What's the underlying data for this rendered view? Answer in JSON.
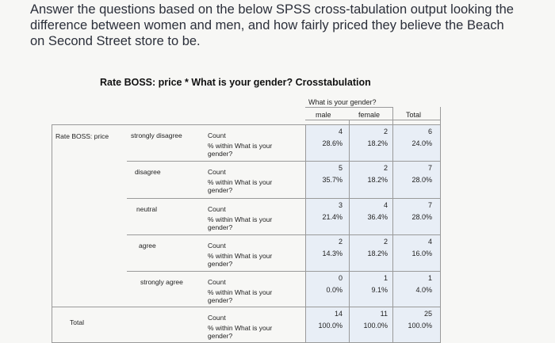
{
  "question": {
    "text": "Answer the questions based on the below SPSS cross-tabulation output looking the difference between women and men, and how fairly priced they believe the Beach on Second Street store to be."
  },
  "table": {
    "title": "Rate BOSS: price * What is your gender? Crosstabulation",
    "col_group_header": "What is your gender?",
    "columns": [
      "male",
      "female",
      "Total"
    ],
    "row_var_label": "Rate BOSS: price",
    "total_label": "Total",
    "stat_labels": [
      "Count",
      "% within What is your gender?"
    ],
    "rows": [
      {
        "category": "strongly disagree",
        "count": [
          "4",
          "2",
          "6"
        ],
        "pct": [
          "28.6%",
          "18.2%",
          "24.0%"
        ]
      },
      {
        "category": "disagree",
        "count": [
          "5",
          "2",
          "7"
        ],
        "pct": [
          "35.7%",
          "18.2%",
          "28.0%"
        ]
      },
      {
        "category": "neutral",
        "count": [
          "3",
          "4",
          "7"
        ],
        "pct": [
          "21.4%",
          "36.4%",
          "28.0%"
        ]
      },
      {
        "category": "agree",
        "count": [
          "2",
          "2",
          "4"
        ],
        "pct": [
          "14.3%",
          "18.2%",
          "16.0%"
        ]
      },
      {
        "category": "strongly agree",
        "count": [
          "0",
          "1",
          "1"
        ],
        "pct": [
          "0.0%",
          "9.1%",
          "4.0%"
        ]
      },
      {
        "category": "",
        "count": [
          "14",
          "11",
          "25"
        ],
        "pct": [
          "100.0%",
          "100.0%",
          "100.0%"
        ]
      }
    ]
  },
  "colors": {
    "page_background": "#f7f7f5",
    "question_text": "#2b2f3a",
    "grid_lines": "#9a9a9a",
    "data_shading": "#e8eef6"
  }
}
